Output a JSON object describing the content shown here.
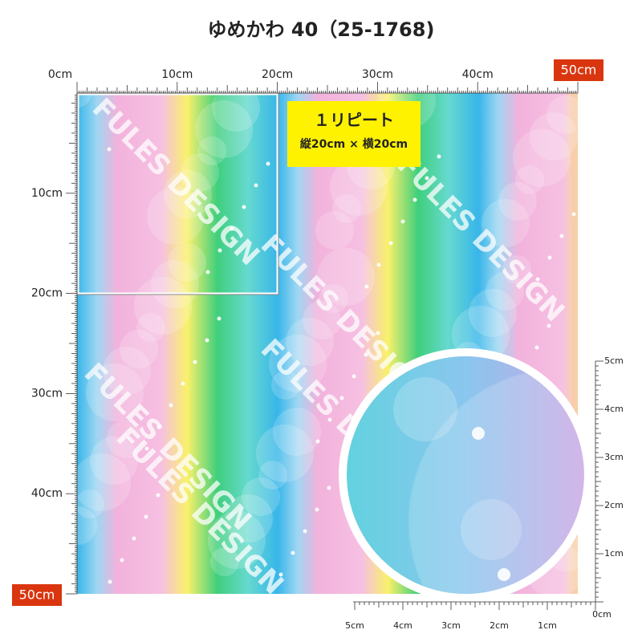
{
  "header": {
    "title": "ゆめかわ 40（25-1768)"
  },
  "ruler_top": {
    "labels": [
      "0cm",
      "10cm",
      "20cm",
      "30cm",
      "40cm"
    ],
    "end": "50cm"
  },
  "ruler_left": {
    "labels": [
      "10cm",
      "20cm",
      "30cm",
      "40cm"
    ],
    "end": "50cm"
  },
  "repeat": {
    "title": "１リピート",
    "size": "縦20cm × 横20cm"
  },
  "watermark": "FULES DESIGN",
  "zoom_ruler_right": [
    "5cm",
    "4cm",
    "3cm",
    "2cm",
    "1cm",
    "0cm"
  ],
  "zoom_ruler_bottom": [
    "5cm",
    "4cm",
    "3cm",
    "2cm",
    "1cm"
  ]
}
